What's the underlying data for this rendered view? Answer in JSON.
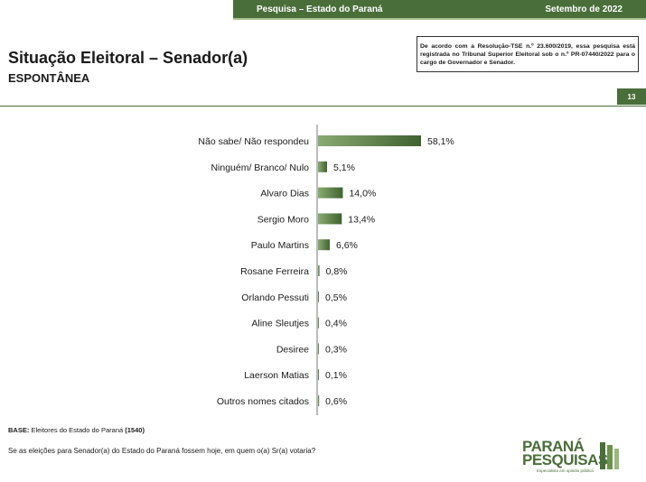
{
  "header": {
    "left": "Pesquisa – Estado do Paraná",
    "right": "Setembro de 2022"
  },
  "title": "Situação Eleitoral – Senador(a)",
  "subtitle": "ESPONTÂNEA",
  "notice": "De acordo com a Resolução-TSE n.º 23.600/2019, essa pesquisa está registrada no Tribunal Superior Eleitoral sob o n.º PR-07440/2022 para o cargo de Governador e Senador.",
  "page_number": "13",
  "base": {
    "label": "BASE:",
    "text": "Eleitores do Estado do Paraná",
    "count": "(1540)"
  },
  "question": "Se as eleições para Senador(a) do Estado do Paraná fossem hoje, em quem o(a) Sr(a) votaria?",
  "logo": {
    "line1": "PARANÁ",
    "line2": "PESQUISAS",
    "tagline": "Especialista em opinião pública"
  },
  "colors": {
    "accent": "#4a6e3a",
    "bar_dark": "#3f6230",
    "bar_light": "#8aaa72"
  },
  "chart_data": {
    "type": "bar",
    "orientation": "horizontal",
    "categories": [
      "Não sabe/ Não respondeu",
      "Ninguém/ Branco/ Nulo",
      "Alvaro Dias",
      "Sergio Moro",
      "Paulo Martins",
      "Rosane Ferreira",
      "Orlando Pessuti",
      "Aline Sleutjes",
      "Desiree",
      "Laerson Matias",
      "Outros nomes citados"
    ],
    "values": [
      58.1,
      5.1,
      14.0,
      13.4,
      6.6,
      0.8,
      0.5,
      0.4,
      0.3,
      0.1,
      0.6
    ],
    "value_labels": [
      "58,1%",
      "5,1%",
      "14,0%",
      "13,4%",
      "6,6%",
      "0,8%",
      "0,5%",
      "0,4%",
      "0,3%",
      "0,1%",
      "0,6%"
    ],
    "xlim": [
      0,
      100
    ]
  }
}
